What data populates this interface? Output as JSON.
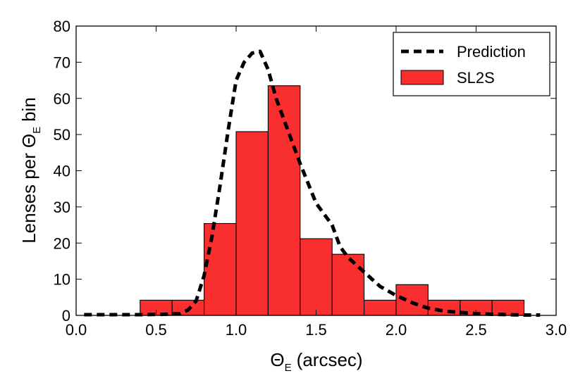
{
  "chart_data": {
    "type": "bar",
    "title": "",
    "xlabel": {
      "symbol": "Θ",
      "subscript": "E",
      "unit": "(arcsec)"
    },
    "ylabel": {
      "prefix": "Lenses per",
      "symbol": "Θ",
      "subscript": "E",
      "suffix": "bin"
    },
    "xlim": [
      0.0,
      3.0
    ],
    "ylim": [
      0,
      80
    ],
    "xticks": [
      "0.0",
      "0.5",
      "1.0",
      "1.5",
      "2.0",
      "2.5",
      "3.0"
    ],
    "yticks": [
      "0",
      "10",
      "20",
      "30",
      "40",
      "50",
      "60",
      "70",
      "80"
    ],
    "bin_edges": [
      0.4,
      0.6,
      0.8,
      1.0,
      1.2,
      1.4,
      1.6,
      1.8,
      2.0,
      2.2,
      2.4,
      2.6,
      2.8
    ],
    "series": [
      {
        "name": "SL2S",
        "kind": "histogram",
        "color": "#f92f2f",
        "values": [
          4.2,
          4.2,
          25.4,
          50.8,
          63.5,
          21.2,
          16.9,
          4.2,
          8.5,
          4.2,
          4.2,
          4.2
        ]
      },
      {
        "name": "Prediction",
        "kind": "line",
        "style": "dashed",
        "color": "#000000",
        "x": [
          0.05,
          0.2,
          0.4,
          0.55,
          0.65,
          0.7,
          0.75,
          0.8,
          0.85,
          0.9,
          0.95,
          1.0,
          1.05,
          1.1,
          1.15,
          1.2,
          1.25,
          1.3,
          1.4,
          1.5,
          1.6,
          1.65,
          1.7,
          1.8,
          1.9,
          2.0,
          2.1,
          2.2,
          2.3,
          2.4,
          2.5,
          2.6,
          2.7,
          2.8,
          2.9
        ],
        "y": [
          0.2,
          0.2,
          0.2,
          0.3,
          0.5,
          1.5,
          4,
          11,
          22,
          36,
          51,
          65,
          70,
          72.5,
          73,
          68,
          60,
          54,
          42,
          31,
          25,
          19,
          16,
          12,
          8,
          5.5,
          3.5,
          2.0,
          1.2,
          0.8,
          0.5,
          0.3,
          0.2,
          0.1,
          0.1
        ]
      }
    ],
    "legend": {
      "position": "top-right",
      "entries": [
        "Prediction",
        "SL2S"
      ]
    }
  }
}
